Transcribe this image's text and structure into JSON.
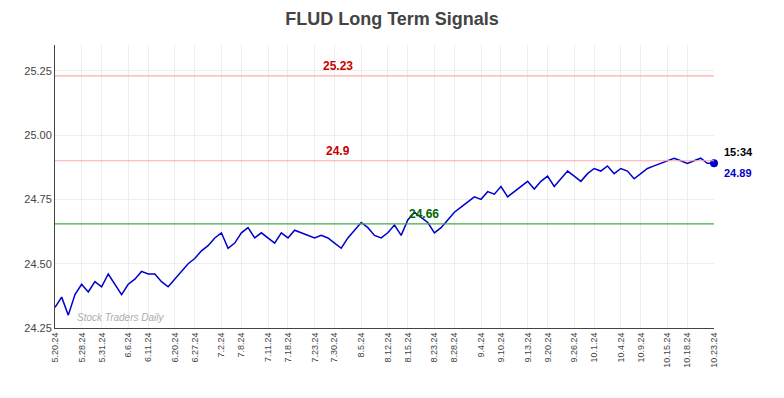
{
  "chart_data": {
    "type": "line",
    "title": "FLUD Long Term Signals",
    "watermark": "Stock Traders Daily",
    "color": "#0000cc",
    "grid": true,
    "ylim": [
      24.25,
      25.35
    ],
    "yticks": [
      24.25,
      {
        "value": 24.5,
        "label": "24.50"
      },
      24.75,
      {
        "value": 25.0,
        "label": "25.00"
      },
      25.25
    ],
    "categories": [
      "5.20.24",
      null,
      null,
      null,
      "5.28.24",
      null,
      null,
      "5.31.24",
      null,
      null,
      null,
      "6.6.24",
      null,
      null,
      "6.11.24",
      null,
      null,
      null,
      "6.20.24",
      null,
      null,
      "6.27.24",
      null,
      null,
      null,
      "7.2.24",
      null,
      null,
      "7.8.24",
      null,
      null,
      null,
      "7.11.24",
      null,
      null,
      "7.18.24",
      null,
      null,
      null,
      "7.23.24",
      null,
      null,
      "7.30.24",
      null,
      null,
      null,
      "8.5.24",
      null,
      null,
      null,
      "8.12.24",
      null,
      null,
      "8.15.24",
      null,
      null,
      null,
      "8.23.24",
      null,
      null,
      "8.28.24",
      null,
      null,
      null,
      "9.4.24",
      null,
      null,
      "9.10.24",
      null,
      null,
      null,
      "9.13.24",
      null,
      null,
      "9.20.24",
      null,
      null,
      null,
      "9.26.24",
      null,
      null,
      "10.1.24",
      null,
      null,
      null,
      "10.4.24",
      null,
      null,
      "10.9.24",
      null,
      null,
      null,
      "10.15.24",
      null,
      null,
      "10.18.24",
      null,
      null,
      null,
      "10.23.24"
    ],
    "values": [
      24.33,
      24.37,
      24.3,
      24.38,
      24.42,
      24.39,
      24.43,
      24.41,
      24.46,
      24.42,
      24.38,
      24.42,
      24.44,
      24.47,
      24.46,
      24.46,
      24.43,
      24.41,
      24.44,
      24.47,
      24.5,
      24.52,
      24.55,
      24.57,
      24.6,
      24.62,
      24.56,
      24.58,
      24.62,
      24.64,
      24.6,
      24.62,
      24.6,
      24.58,
      24.62,
      24.6,
      24.63,
      24.62,
      24.61,
      24.6,
      24.61,
      24.6,
      24.58,
      24.56,
      24.6,
      24.63,
      24.66,
      24.64,
      24.61,
      24.6,
      24.62,
      24.65,
      24.61,
      24.67,
      24.7,
      24.68,
      24.66,
      24.62,
      24.64,
      24.67,
      24.7,
      24.72,
      24.74,
      24.76,
      24.75,
      24.78,
      24.77,
      24.8,
      24.76,
      24.78,
      24.8,
      24.82,
      24.79,
      24.82,
      24.84,
      24.8,
      24.83,
      24.86,
      24.84,
      24.82,
      24.85,
      24.87,
      24.86,
      24.88,
      24.85,
      24.87,
      24.86,
      24.83,
      24.85,
      24.87,
      24.88,
      24.89,
      24.9,
      24.91,
      24.9,
      24.89,
      24.9,
      24.91,
      24.89,
      24.89
    ],
    "hlines": [
      {
        "value": 25.23,
        "label": "25.23",
        "color": "#ffaaaa",
        "label_color": "#cc0000"
      },
      {
        "value": 24.9,
        "label": "24.9",
        "color": "#ffaaaa",
        "label_color": "#cc0000"
      },
      {
        "value": 24.655,
        "label": "24.66",
        "color": "#44aa44",
        "label_color": "#006600"
      }
    ],
    "last_point": {
      "value": 24.89,
      "label": "24.89",
      "time": "15:34"
    }
  }
}
